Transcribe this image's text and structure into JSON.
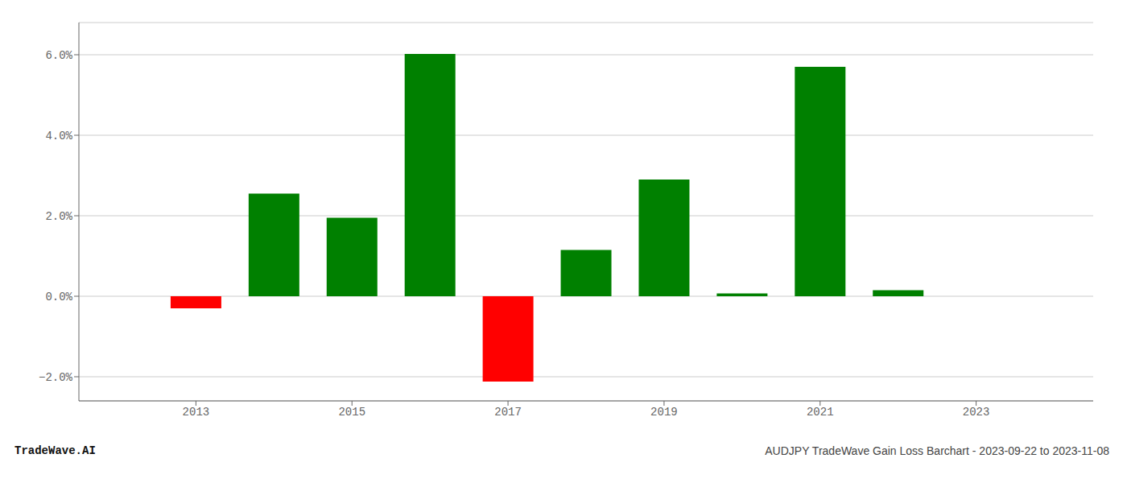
{
  "chart_data": {
    "type": "bar",
    "x": [
      2013,
      2014,
      2015,
      2016,
      2017,
      2018,
      2019,
      2020,
      2021,
      2022
    ],
    "values": [
      -0.3,
      2.55,
      1.95,
      6.02,
      -2.12,
      1.15,
      2.9,
      0.07,
      5.7,
      0.15
    ],
    "colors": [
      "#ff0000",
      "#008000",
      "#008000",
      "#008000",
      "#ff0000",
      "#008000",
      "#008000",
      "#008000",
      "#008000",
      "#008000"
    ],
    "xlim": [
      2011.5,
      2024.5
    ],
    "xticks": [
      2013,
      2015,
      2017,
      2019,
      2021,
      2023
    ],
    "ylim": [
      -2.6,
      6.8
    ],
    "yticks": [
      {
        "value": -2.0,
        "label": "−2.0%"
      },
      {
        "value": 0.0,
        "label": "0.0%"
      },
      {
        "value": 2.0,
        "label": "2.0%"
      },
      {
        "value": 4.0,
        "label": "4.0%"
      },
      {
        "value": 6.0,
        "label": "6.0%"
      }
    ],
    "grid": true,
    "annotations": [
      "TradeWave.AI",
      "AUDJPY TradeWave Gain Loss Barchart - 2023-09-22 to 2023-11-08"
    ]
  }
}
